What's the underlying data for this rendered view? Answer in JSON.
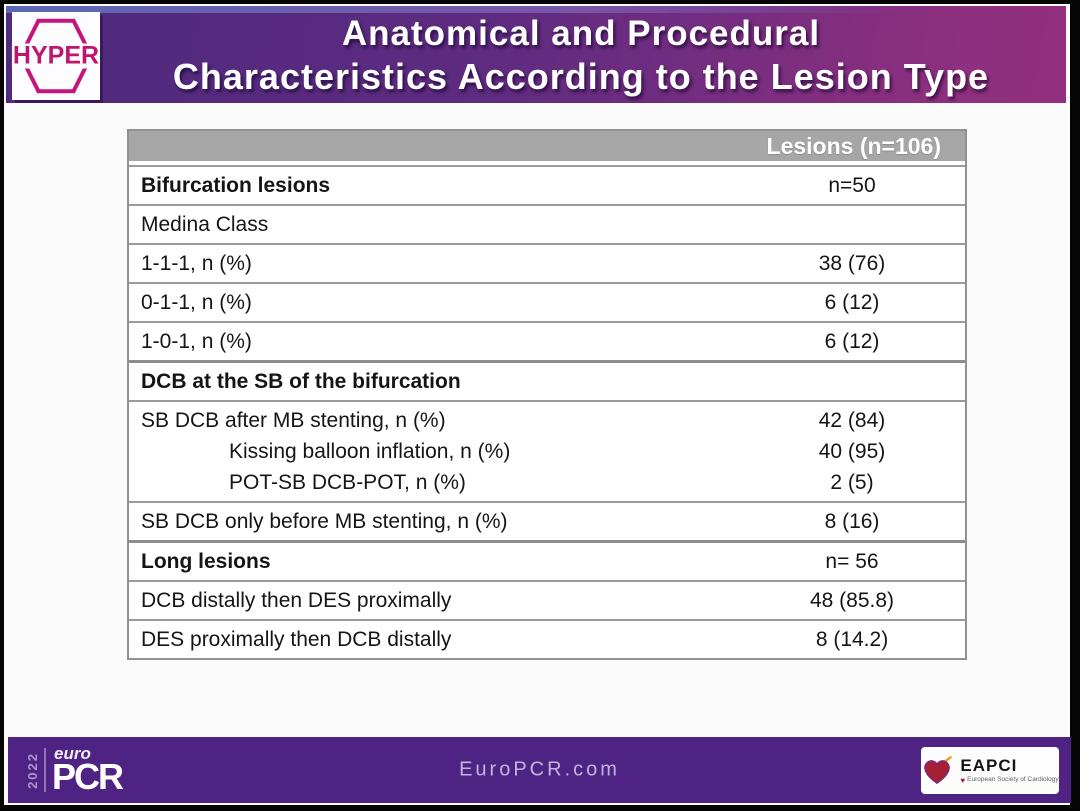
{
  "header": {
    "logo": "HYPER",
    "title_line1": "Anatomical and Procedural",
    "title_line2": "Characteristics According to the Lesion Type"
  },
  "table": {
    "column_header": "Lesions (n=106)",
    "rows": [
      {
        "label": "Bifurcation lesions",
        "value": "n=50",
        "style": "section"
      },
      {
        "label": "Medina Class",
        "value": ""
      },
      {
        "label": "1-1-1, n (%)",
        "value": "38 (76)"
      },
      {
        "label": "0-1-1, n (%)",
        "value": "6 (12)"
      },
      {
        "label": "1-0-1, n (%)",
        "value": "6 (12)"
      },
      {
        "label": "DCB at the SB of the bifurcation",
        "value": "",
        "style": "section",
        "divider": "thick"
      },
      {
        "label": "SB DCB after MB stenting, n (%)",
        "value": "42 (84)",
        "sub_rows": [
          {
            "label": "Kissing balloon inflation, n (%)",
            "value": "40 (95)"
          },
          {
            "label": "POT-SB DCB-POT, n (%)",
            "value": "2 (5)"
          }
        ]
      },
      {
        "label": "SB DCB only before MB stenting, n (%)",
        "value": "8 (16)"
      },
      {
        "label": "Long lesions",
        "value": "n= 56",
        "style": "section",
        "divider": "thick"
      },
      {
        "label": "DCB distally then DES proximally",
        "value": "48 (85.8)"
      },
      {
        "label": "DES proximally then DCB distally",
        "value": "8 (14.2)"
      }
    ]
  },
  "footer": {
    "year": "2022",
    "brand_euro": "euro",
    "brand_pcr": "PCR",
    "website": "EuroPCR.com",
    "eapci_name": "EAPCI",
    "eapci_subtitle": "European Society of Cardiology"
  },
  "colors": {
    "header_purple_left": "#4f2a7e",
    "header_purple_right": "#8d2f7f",
    "footer_purple": "#4e2383",
    "table_header_gray": "#a6a6a6",
    "hyper_magenta": "#c0156f",
    "eapci_red": "#a81e35"
  }
}
